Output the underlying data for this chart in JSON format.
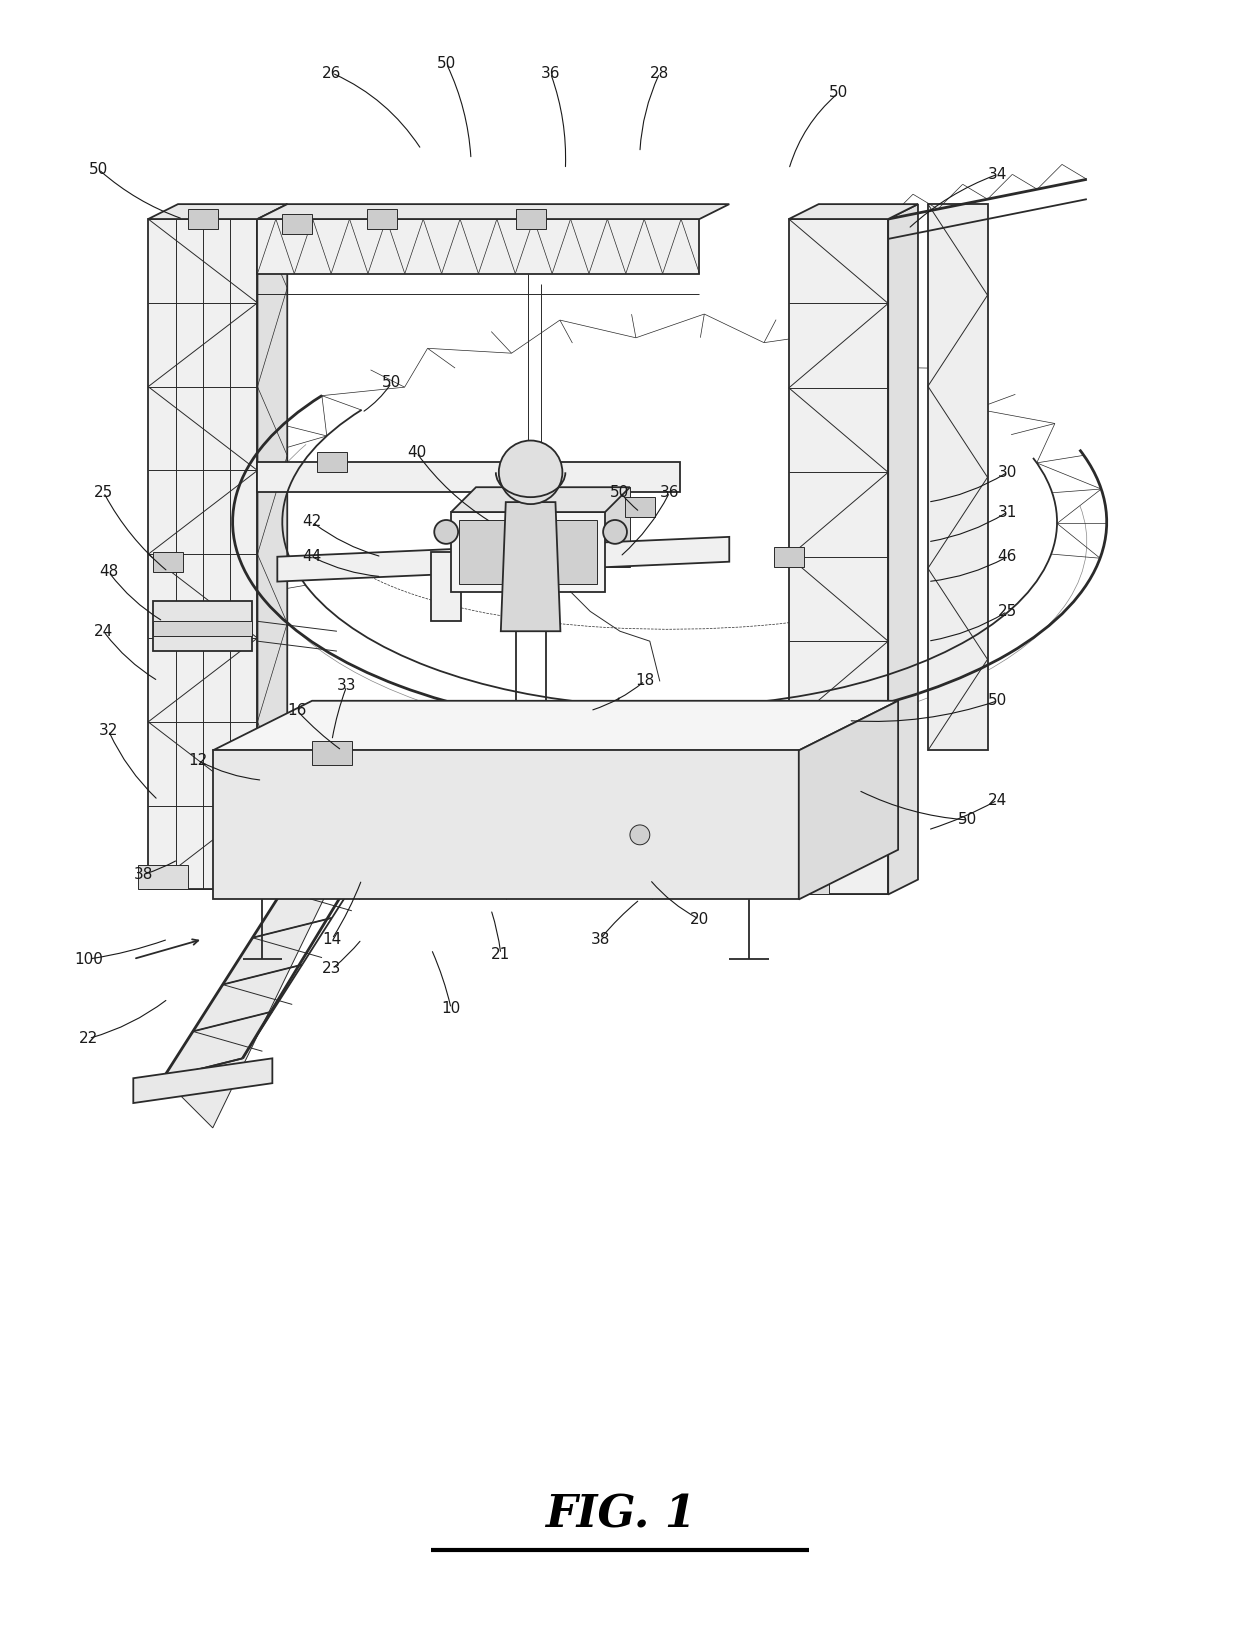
{
  "title": "FIG. 1",
  "bg_color": "#ffffff",
  "line_color": "#2a2a2a",
  "fig_width": 12.4,
  "fig_height": 16.29,
  "dpi": 100,
  "lw_thick": 2.0,
  "lw_main": 1.3,
  "lw_thin": 0.7,
  "lw_vthin": 0.5,
  "ref_fontsize": 11,
  "title_fontsize": 32
}
